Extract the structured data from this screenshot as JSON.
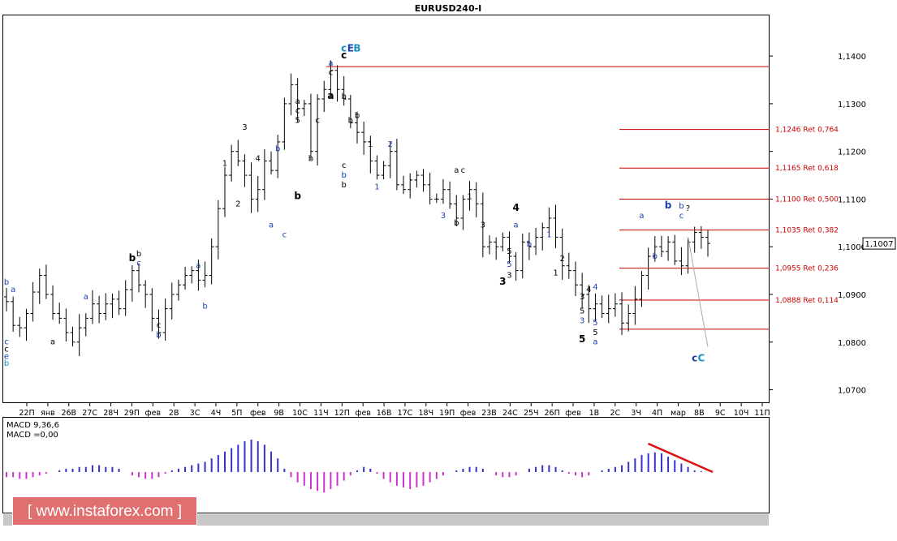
{
  "header": {
    "symbol": "EURUSD240-I"
  },
  "colors": {
    "bar": "#000000",
    "fib_line": "#cc0000",
    "wave_blue": "#1a3fb0",
    "wave_cyan": "#1a8fc4",
    "hist_pos": "#3333cc",
    "hist_neg": "#cc33cc",
    "trend": "#dd1111"
  },
  "chart_data": {
    "type": "ohlc",
    "title": "EURUSD240-I",
    "ylim": [
      1.0672,
      1.1487
    ],
    "y_ticks": [
      "1,0700",
      "1,0800",
      "1,0900",
      "1,1000",
      "1,1100",
      "1,1200",
      "1,1300",
      "1,1400"
    ],
    "x_ticks": [
      "22П",
      "янв",
      "26В",
      "27С",
      "28Ч",
      "29П",
      "фев",
      "2В",
      "3С",
      "4Ч",
      "5П",
      "фев",
      "9В",
      "10С",
      "11Ч",
      "12П",
      "фев",
      "16В",
      "17С",
      "18Ч",
      "19П",
      "фев",
      "23В",
      "24С",
      "25Ч",
      "26П",
      "фев",
      "1В",
      "2С",
      "3Ч",
      "4П",
      "мар",
      "8В",
      "9С",
      "10Ч",
      "11П"
    ],
    "current_price": "1,1007",
    "ohlc_path": [
      1.0885,
      1.0835,
      1.083,
      1.086,
      1.0905,
      1.094,
      1.09,
      1.086,
      1.085,
      1.082,
      1.08,
      1.083,
      1.085,
      1.088,
      1.086,
      1.088,
      1.089,
      1.087,
      1.091,
      1.095,
      1.092,
      1.09,
      1.085,
      1.082,
      1.087,
      1.09,
      1.092,
      1.094,
      1.095,
      1.093,
      1.094,
      1.1,
      1.108,
      1.115,
      1.12,
      1.118,
      1.115,
      1.11,
      1.112,
      1.118,
      1.116,
      1.122,
      1.13,
      1.134,
      1.129,
      1.13,
      1.12,
      1.131,
      1.133,
      1.137,
      1.133,
      1.131,
      1.126,
      1.124,
      1.122,
      1.118,
      1.115,
      1.117,
      1.12,
      1.113,
      1.112,
      1.114,
      1.115,
      1.113,
      1.11,
      1.11,
      1.112,
      1.109,
      1.106,
      1.11,
      1.112,
      1.109,
      1.1,
      1.101,
      1.1,
      1.102,
      1.098,
      1.095,
      1.101,
      1.1,
      1.102,
      1.104,
      1.106,
      1.102,
      1.096,
      1.095,
      1.092,
      1.09,
      1.087,
      1.088,
      1.086,
      1.087,
      1.088,
      1.084,
      1.086,
      1.089,
      1.094,
      1.098,
      1.1,
      1.099,
      1.101,
      1.097,
      1.096,
      1.101,
      1.103,
      1.102,
      1.1007
    ],
    "fib_levels": [
      {
        "price": 1.1378,
        "label": ""
      },
      {
        "price": 1.1246,
        "label": "1,1246 Ret 0,764"
      },
      {
        "price": 1.1165,
        "label": "1,1165 Ret 0,618"
      },
      {
        "price": 1.11,
        "label": "1,1100 Ret 0,500"
      },
      {
        "price": 1.1035,
        "label": "1,1035 Ret 0,382"
      },
      {
        "price": 1.0955,
        "label": "1,0955 Ret 0,236"
      },
      {
        "price": 1.0888,
        "label": "1,0888 Ret 0,114"
      },
      {
        "price": 1.0827,
        "label": ""
      }
    ],
    "wave_labels": [
      {
        "i": 0,
        "price": 1.0795,
        "text": "c",
        "color": "blue"
      },
      {
        "i": 0,
        "price": 1.078,
        "text": "c",
        "color": "black"
      },
      {
        "i": 0,
        "price": 1.0765,
        "text": "e",
        "color": "blue"
      },
      {
        "i": 0,
        "price": 1.075,
        "text": "b",
        "color": "cyan"
      },
      {
        "i": 0,
        "price": 1.092,
        "text": "b",
        "color": "blue"
      },
      {
        "i": 1,
        "price": 1.0905,
        "text": "a",
        "color": "blue"
      },
      {
        "i": 7,
        "price": 1.0795,
        "text": "a",
        "color": "black"
      },
      {
        "i": 12,
        "price": 1.089,
        "text": "a",
        "color": "blue"
      },
      {
        "i": 20,
        "price": 1.098,
        "text": "b",
        "color": "black"
      },
      {
        "i": 20,
        "price": 1.096,
        "text": "c",
        "color": "blue"
      },
      {
        "i": 23,
        "price": 1.083,
        "text": "c",
        "color": "black"
      },
      {
        "i": 23,
        "price": 1.081,
        "text": "b",
        "color": "blue"
      },
      {
        "i": 30,
        "price": 1.087,
        "text": "b",
        "color": "blue"
      },
      {
        "i": 29,
        "price": 1.0955,
        "text": "a",
        "color": "blue"
      },
      {
        "i": 33,
        "price": 1.117,
        "text": "1",
        "color": "black"
      },
      {
        "i": 35,
        "price": 1.1085,
        "text": "2",
        "color": "black"
      },
      {
        "i": 36,
        "price": 1.1245,
        "text": "3",
        "color": "black"
      },
      {
        "i": 38,
        "price": 1.118,
        "text": "4",
        "color": "black"
      },
      {
        "i": 40,
        "price": 1.104,
        "text": "a",
        "color": "blue"
      },
      {
        "i": 42,
        "price": 1.102,
        "text": "c",
        "color": "blue"
      },
      {
        "i": 41,
        "price": 1.12,
        "text": "b",
        "color": "blue"
      },
      {
        "i": 44,
        "price": 1.13,
        "text": "a",
        "color": "black"
      },
      {
        "i": 44,
        "price": 1.128,
        "text": "c",
        "color": "black"
      },
      {
        "i": 44,
        "price": 1.126,
        "text": "5",
        "color": "black"
      },
      {
        "i": 46,
        "price": 1.118,
        "text": "b",
        "color": "black"
      },
      {
        "i": 47,
        "price": 1.126,
        "text": "c",
        "color": "black"
      },
      {
        "i": 49,
        "price": 1.138,
        "text": "a",
        "color": "blue"
      },
      {
        "i": 49,
        "price": 1.136,
        "text": "c",
        "color": "black"
      },
      {
        "i": 51,
        "price": 1.131,
        "text": "b",
        "color": "black"
      },
      {
        "i": 52,
        "price": 1.126,
        "text": "b",
        "color": "black"
      },
      {
        "i": 51,
        "price": 1.1165,
        "text": "c",
        "color": "black"
      },
      {
        "i": 51,
        "price": 1.1145,
        "text": "b",
        "color": "blue"
      },
      {
        "i": 51,
        "price": 1.1125,
        "text": "b",
        "color": "black"
      },
      {
        "i": 53,
        "price": 1.127,
        "text": "b",
        "color": "black"
      },
      {
        "i": 55,
        "price": 1.121,
        "text": "1",
        "color": "black"
      },
      {
        "i": 58,
        "price": 1.121,
        "text": "2",
        "color": "blue"
      },
      {
        "i": 56,
        "price": 1.112,
        "text": "1",
        "color": "blue"
      },
      {
        "i": 66,
        "price": 1.106,
        "text": "3",
        "color": "blue"
      },
      {
        "i": 68,
        "price": 1.1155,
        "text": "a",
        "color": "black"
      },
      {
        "i": 69,
        "price": 1.1155,
        "text": "c",
        "color": "black"
      },
      {
        "i": 68,
        "price": 1.1045,
        "text": "b",
        "color": "black"
      },
      {
        "i": 70,
        "price": 1.11,
        "text": "1",
        "color": "black"
      },
      {
        "i": 72,
        "price": 1.104,
        "text": "3",
        "color": "black"
      },
      {
        "i": 77,
        "price": 1.104,
        "text": "a",
        "color": "blue"
      },
      {
        "i": 76,
        "price": 1.0985,
        "text": "5",
        "color": "black"
      },
      {
        "i": 76,
        "price": 1.0958,
        "text": "5",
        "color": "blue"
      },
      {
        "i": 76,
        "price": 1.0935,
        "text": "3",
        "color": "black"
      },
      {
        "i": 79,
        "price": 1.1,
        "text": "b",
        "color": "blue"
      },
      {
        "i": 82,
        "price": 1.102,
        "text": "1",
        "color": "blue"
      },
      {
        "i": 84,
        "price": 1.097,
        "text": "2",
        "color": "black"
      },
      {
        "i": 83,
        "price": 1.094,
        "text": "1",
        "color": "black"
      },
      {
        "i": 87,
        "price": 1.089,
        "text": "3",
        "color": "black"
      },
      {
        "i": 88,
        "price": 1.0905,
        "text": "4",
        "color": "black"
      },
      {
        "i": 89,
        "price": 1.091,
        "text": "4",
        "color": "blue"
      },
      {
        "i": 87,
        "price": 1.086,
        "text": "5",
        "color": "black"
      },
      {
        "i": 87,
        "price": 1.084,
        "text": "3",
        "color": "blue"
      },
      {
        "i": 89,
        "price": 1.0835,
        "text": "5",
        "color": "blue"
      },
      {
        "i": 89,
        "price": 1.0815,
        "text": "5",
        "color": "black"
      },
      {
        "i": 89,
        "price": 1.0795,
        "text": "a",
        "color": "blue"
      },
      {
        "i": 96,
        "price": 1.106,
        "text": "a",
        "color": "blue"
      },
      {
        "i": 98,
        "price": 1.0975,
        "text": "b",
        "color": "blue"
      },
      {
        "i": 102,
        "price": 1.108,
        "text": "b",
        "color": "blue"
      },
      {
        "i": 102,
        "price": 1.106,
        "text": "c",
        "color": "blue"
      },
      {
        "i": 103,
        "price": 1.1075,
        "text": "?",
        "color": "black"
      }
    ],
    "bold_labels": [
      {
        "i": 51,
        "price": 1.141,
        "text": "c",
        "color": "cyan"
      },
      {
        "i": 51,
        "price": 1.1395,
        "text": "c",
        "color": "black"
      },
      {
        "i": 52,
        "price": 1.141,
        "text": "E",
        "color": "blue"
      },
      {
        "i": 53,
        "price": 1.141,
        "text": "B",
        "color": "cyan"
      },
      {
        "i": 49,
        "price": 1.131,
        "text": "a",
        "color": "black"
      },
      {
        "i": 44,
        "price": 1.11,
        "text": "b",
        "color": "black"
      },
      {
        "i": 19,
        "price": 1.097,
        "text": "b",
        "color": "black"
      },
      {
        "i": 75,
        "price": 1.092,
        "text": "3",
        "color": "black"
      },
      {
        "i": 77,
        "price": 1.1075,
        "text": "4",
        "color": "black"
      },
      {
        "i": 87,
        "price": 1.08,
        "text": "5",
        "color": "black"
      },
      {
        "i": 100,
        "price": 1.108,
        "text": "b",
        "color": "blue"
      },
      {
        "i": 104,
        "price": 1.076,
        "text": "c",
        "color": "blue"
      },
      {
        "i": 105,
        "price": 1.076,
        "text": "C",
        "color": "cyan"
      }
    ],
    "forecast_line": [
      {
        "i": 103,
        "price": 1.102
      },
      {
        "i": 106,
        "price": 1.079
      }
    ]
  },
  "macd": {
    "label1": "MACD 9,36,6",
    "label2": "MACD =0,00",
    "values": [
      -0.3,
      -0.3,
      -0.4,
      -0.4,
      -0.3,
      -0.2,
      -0.1,
      0,
      0.1,
      0.2,
      0.2,
      0.3,
      0.3,
      0.4,
      0.4,
      0.3,
      0.3,
      0.2,
      0,
      -0.2,
      -0.3,
      -0.4,
      -0.4,
      -0.3,
      -0.1,
      0.1,
      0.2,
      0.3,
      0.4,
      0.5,
      0.6,
      0.8,
      1,
      1.2,
      1.4,
      1.6,
      1.8,
      1.9,
      1.8,
      1.6,
      1.2,
      0.8,
      0.2,
      -0.3,
      -0.6,
      -0.8,
      -1,
      -1.1,
      -1.2,
      -1,
      -0.8,
      -0.5,
      -0.2,
      0.1,
      0.3,
      0.2,
      -0.1,
      -0.4,
      -0.6,
      -0.8,
      -0.9,
      -1,
      -0.9,
      -0.8,
      -0.6,
      -0.4,
      -0.2,
      0,
      0.1,
      0.2,
      0.3,
      0.3,
      0.2,
      0,
      -0.2,
      -0.3,
      -0.3,
      -0.2,
      0,
      0.2,
      0.3,
      0.4,
      0.4,
      0.3,
      0.1,
      -0.1,
      -0.2,
      -0.3,
      -0.2,
      0,
      0.1,
      0.2,
      0.3,
      0.4,
      0.6,
      0.8,
      1,
      1.1,
      1.15,
      1.1,
      0.9,
      0.7,
      0.5,
      0.3,
      0.1,
      0.05,
      0
    ],
    "trend_from": 96,
    "trend_to": 106
  },
  "brand": {
    "text": "[ www.instaforex.com ]"
  }
}
